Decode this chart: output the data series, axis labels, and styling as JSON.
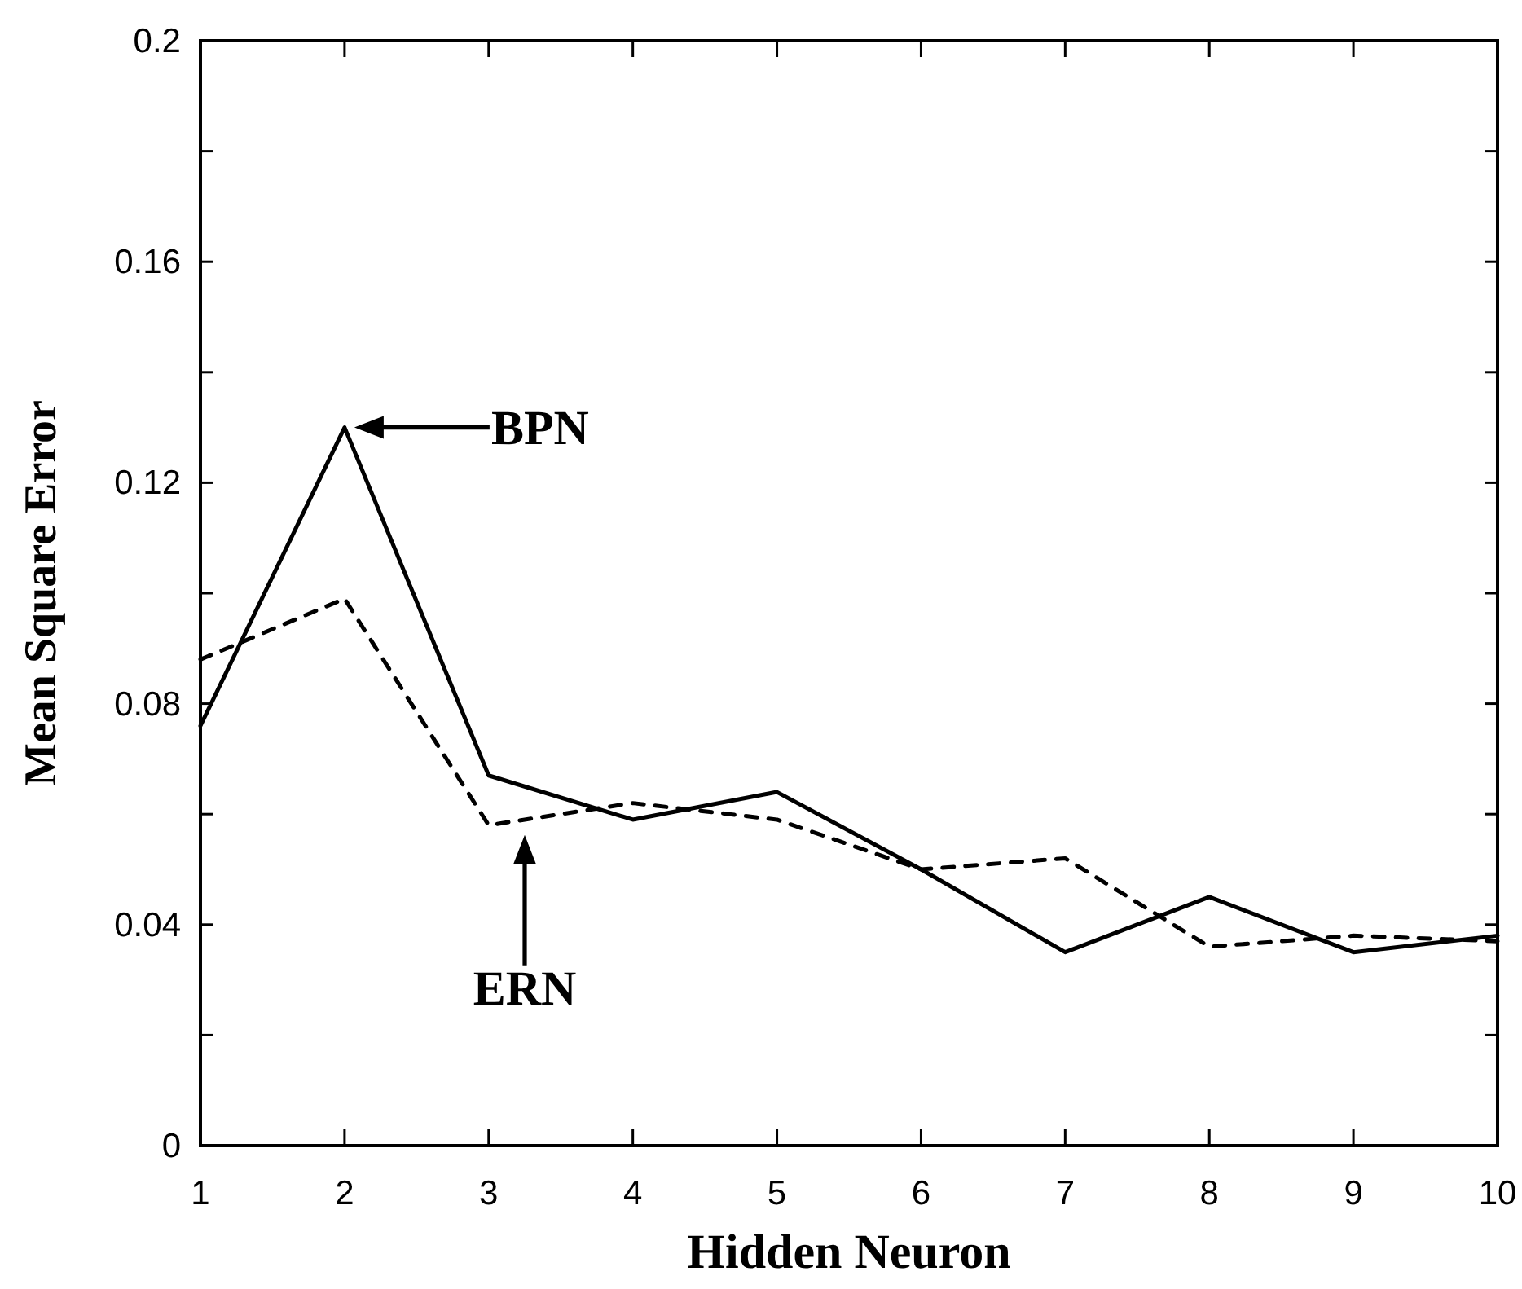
{
  "chart_data": {
    "type": "line",
    "xlabel": "Hidden Neuron",
    "ylabel": "Mean Square Error",
    "x": [
      1,
      2,
      3,
      4,
      5,
      6,
      7,
      8,
      9,
      10
    ],
    "series": [
      {
        "color": "#000000",
        "line_style": "solid",
        "values": [
          0.076,
          0.13,
          0.067,
          0.059,
          0.064,
          0.05,
          0.035,
          0.045,
          0.035,
          0.038
        ]
      },
      {
        "color": "#000000",
        "line_style": "dashed",
        "values": [
          0.088,
          0.099,
          0.058,
          0.062,
          0.059,
          0.05,
          0.052,
          0.036,
          0.038,
          0.037
        ]
      }
    ],
    "xlim": [
      1,
      10
    ],
    "xticks": [
      1,
      2,
      3,
      4,
      5,
      6,
      7,
      8,
      9,
      10
    ],
    "ylim": [
      0,
      0.2
    ],
    "yticks": [
      0,
      {
        "value": 0.02,
        "label": null
      },
      0.04,
      {
        "value": 0.06,
        "label": null
      },
      0.08,
      {
        "value": 0.1,
        "label": null
      },
      0.12,
      {
        "value": 0.14,
        "label": null
      },
      0.16,
      {
        "value": 0.18,
        "label": null
      },
      0.2
    ],
    "annotations": [
      {
        "text": "BPN",
        "x": 2,
        "y": 0.13
      },
      {
        "text": "ERN",
        "x": 3.25,
        "y": 0.058
      }
    ]
  }
}
